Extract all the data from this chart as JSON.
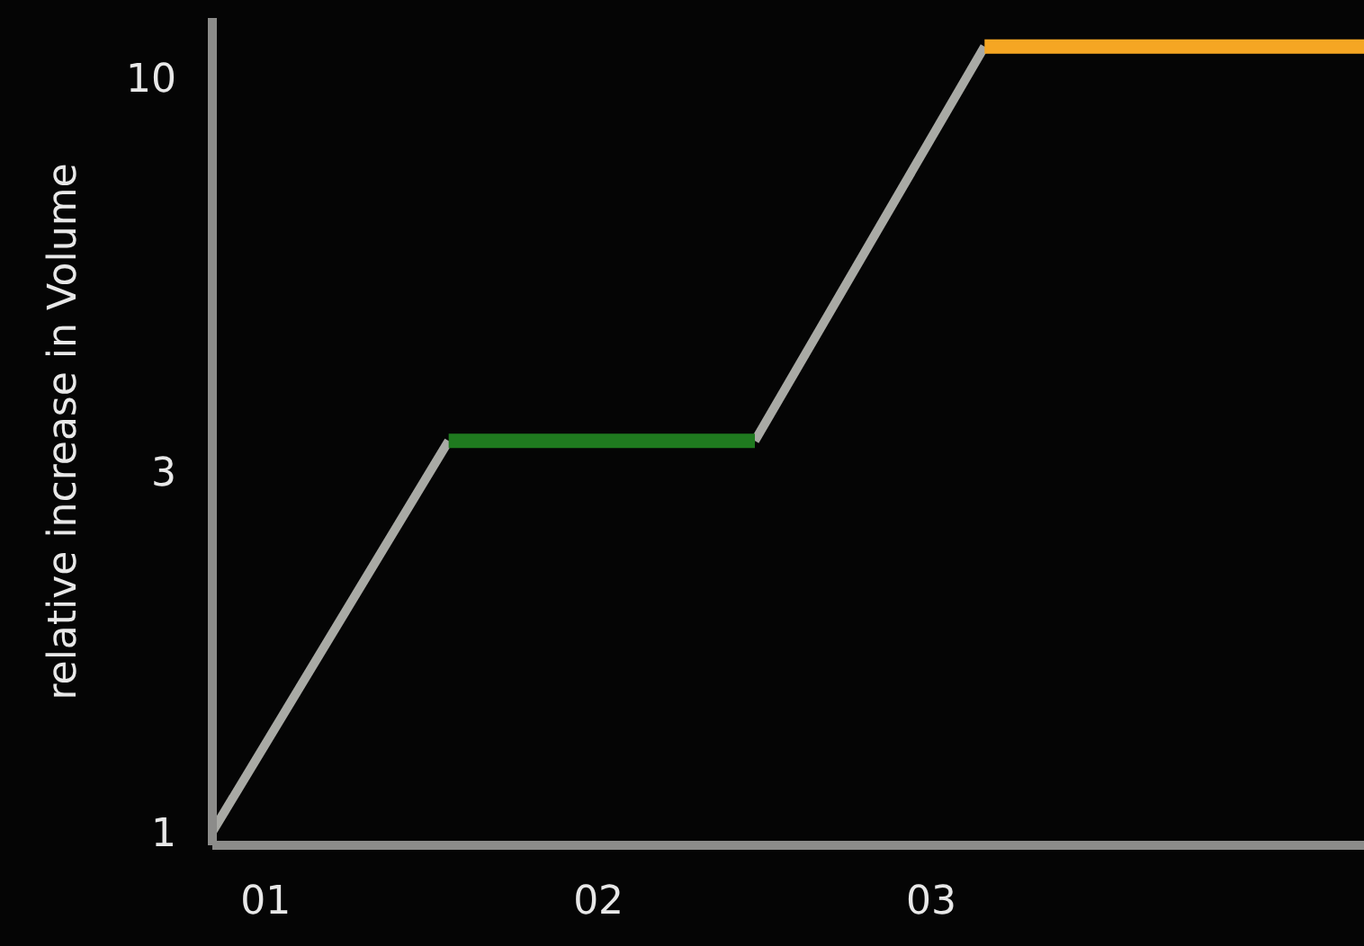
{
  "chart_data": {
    "type": "line",
    "ylabel": "relative increase in Volume",
    "log": "y",
    "xlim": [
      0.84,
      4.3
    ],
    "xticks": [
      {
        "value": 1,
        "label": "01"
      },
      {
        "value": 2,
        "label": "02"
      },
      {
        "value": 3,
        "label": "03"
      }
    ],
    "ylim": [
      0.96,
      12
    ],
    "yticks": [
      1,
      3,
      10
    ],
    "grid": false,
    "marker": "none",
    "line_style": "solid",
    "series": [
      {
        "color": "#a9aaa5",
        "x": [
          0.84,
          1.55
        ],
        "values": [
          1,
          3.3
        ]
      },
      {
        "color": "#a9aaa5",
        "x": [
          2.47,
          3.16
        ],
        "values": [
          3.3,
          11
        ]
      },
      {
        "color": "#1f7a1f",
        "x": [
          1.55,
          2.47
        ],
        "values": [
          3.3,
          3.3
        ]
      },
      {
        "color": "#f5a623",
        "x": [
          3.16,
          4.3
        ],
        "values": [
          11,
          11
        ]
      }
    ]
  }
}
